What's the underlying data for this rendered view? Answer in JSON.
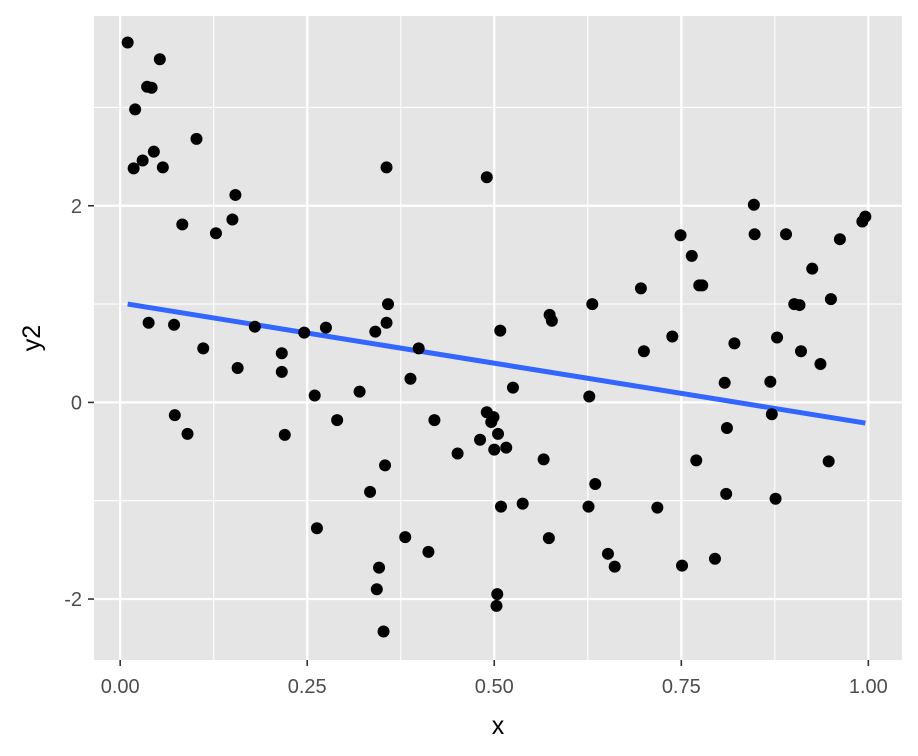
{
  "chart_data": {
    "type": "scatter",
    "xlabel": "x",
    "ylabel": "y2",
    "xlim": [
      -0.035,
      1.045
    ],
    "ylim": [
      -2.62,
      3.93
    ],
    "x_ticks": [
      0,
      0.25,
      0.5,
      0.75,
      1
    ],
    "x_tick_labels": [
      "0.00",
      "0.25",
      "0.50",
      "0.75",
      "1.00"
    ],
    "y_ticks": [
      -2,
      0,
      2
    ],
    "y_tick_labels": [
      "-2",
      "0",
      "2"
    ],
    "grid": true,
    "legend": "none",
    "colors": {
      "panel": "#e5e5e5",
      "grid": "#ffffff",
      "points": "#000000",
      "line": "#3366ff"
    },
    "points": {
      "x": [
        0.01,
        0.018,
        0.02,
        0.03,
        0.036,
        0.038,
        0.042,
        0.045,
        0.053,
        0.057,
        0.072,
        0.073,
        0.083,
        0.09,
        0.102,
        0.111,
        0.128,
        0.15,
        0.154,
        0.157,
        0.18,
        0.216,
        0.216,
        0.22,
        0.246,
        0.26,
        0.263,
        0.275,
        0.29,
        0.32,
        0.334,
        0.341,
        0.343,
        0.346,
        0.352,
        0.354,
        0.356,
        0.356,
        0.358,
        0.381,
        0.388,
        0.399,
        0.412,
        0.42,
        0.451,
        0.481,
        0.49,
        0.49,
        0.496,
        0.499,
        0.5,
        0.503,
        0.504,
        0.505,
        0.508,
        0.509,
        0.516,
        0.525,
        0.538,
        0.566,
        0.573,
        0.574,
        0.577,
        0.626,
        0.627,
        0.631,
        0.635,
        0.652,
        0.661,
        0.696,
        0.7,
        0.718,
        0.738,
        0.749,
        0.751,
        0.764,
        0.77,
        0.774,
        0.778,
        0.795,
        0.808,
        0.81,
        0.811,
        0.821,
        0.847,
        0.848,
        0.869,
        0.871,
        0.876,
        0.878,
        0.89,
        0.901,
        0.908,
        0.91,
        0.925,
        0.936,
        0.947,
        0.95,
        0.962,
        0.992,
        0.996
      ],
      "y": [
        3.66,
        2.38,
        2.98,
        2.46,
        3.21,
        0.81,
        3.2,
        2.55,
        3.49,
        2.39,
        0.79,
        -0.13,
        1.81,
        -0.32,
        2.68,
        0.55,
        1.72,
        1.86,
        2.11,
        0.35,
        0.77,
        0.5,
        0.31,
        -0.33,
        0.71,
        0.07,
        -1.28,
        0.76,
        -0.18,
        0.11,
        -0.91,
        0.72,
        -1.9,
        -1.68,
        -2.33,
        -0.64,
        0.81,
        2.39,
        1.0,
        -1.37,
        0.24,
        0.55,
        -1.52,
        -0.18,
        -0.52,
        -0.38,
        -0.1,
        2.29,
        -0.2,
        -0.15,
        -0.48,
        -2.07,
        -1.95,
        -0.32,
        0.73,
        -1.06,
        -0.46,
        0.15,
        -1.03,
        -0.58,
        -1.38,
        0.89,
        0.83,
        -1.06,
        0.06,
        1.0,
        -0.83,
        -1.54,
        -1.67,
        1.16,
        0.52,
        -1.07,
        0.67,
        1.7,
        -1.66,
        1.49,
        -0.59,
        1.19,
        1.19,
        -1.59,
        0.2,
        -0.93,
        -0.26,
        0.6,
        2.01,
        1.71,
        0.21,
        -0.12,
        -0.98,
        0.66,
        1.71,
        1.0,
        0.99,
        0.52,
        1.36,
        0.39,
        -0.6,
        1.05,
        1.66,
        1.84,
        1.89
      ]
    },
    "fit_line": {
      "x": [
        0.01,
        0.996
      ],
      "y": [
        1.0,
        -0.21
      ]
    }
  }
}
